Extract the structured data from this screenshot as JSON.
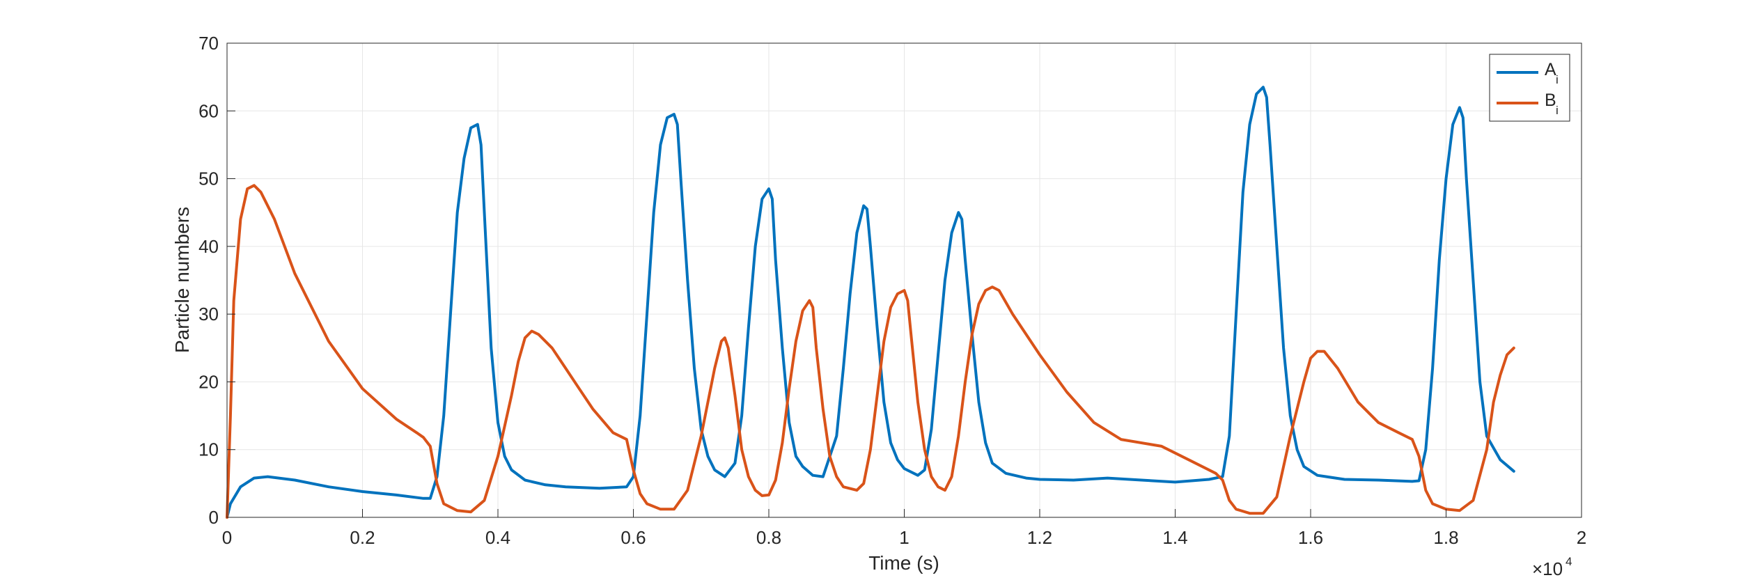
{
  "chart_data": {
    "type": "line",
    "xlabel": "Time (s)",
    "ylabel": "Particle numbers",
    "x_exponent_label": "×10",
    "x_exponent_power": "4",
    "xlim": [
      0,
      2
    ],
    "ylim": [
      0,
      70
    ],
    "x_ticks": [
      0,
      0.2,
      0.4,
      0.6,
      0.8,
      1,
      1.2,
      1.4,
      1.6,
      1.8,
      2
    ],
    "x_tick_labels": [
      "0",
      "0.2",
      "0.4",
      "0.6",
      "0.8",
      "1",
      "1.2",
      "1.4",
      "1.6",
      "1.8",
      "2"
    ],
    "y_ticks": [
      0,
      10,
      20,
      30,
      40,
      50,
      60,
      70
    ],
    "y_tick_labels": [
      "0",
      "10",
      "20",
      "30",
      "40",
      "50",
      "60",
      "70"
    ],
    "grid": true,
    "legend_position": "top-right",
    "series": [
      {
        "name": "A",
        "subscript": "i",
        "color": "#0072BD",
        "points": [
          [
            0,
            0
          ],
          [
            0.005,
            2
          ],
          [
            0.02,
            4.5
          ],
          [
            0.04,
            5.8
          ],
          [
            0.06,
            6
          ],
          [
            0.1,
            5.5
          ],
          [
            0.15,
            4.5
          ],
          [
            0.2,
            3.8
          ],
          [
            0.25,
            3.3
          ],
          [
            0.29,
            2.8
          ],
          [
            0.3,
            2.8
          ],
          [
            0.31,
            6
          ],
          [
            0.32,
            15
          ],
          [
            0.33,
            30
          ],
          [
            0.34,
            45
          ],
          [
            0.35,
            53
          ],
          [
            0.36,
            57.5
          ],
          [
            0.37,
            58
          ],
          [
            0.375,
            55
          ],
          [
            0.38,
            45
          ],
          [
            0.39,
            25
          ],
          [
            0.4,
            14
          ],
          [
            0.41,
            9
          ],
          [
            0.42,
            7
          ],
          [
            0.44,
            5.5
          ],
          [
            0.47,
            4.8
          ],
          [
            0.5,
            4.5
          ],
          [
            0.55,
            4.3
          ],
          [
            0.59,
            4.5
          ],
          [
            0.6,
            6
          ],
          [
            0.61,
            15
          ],
          [
            0.62,
            30
          ],
          [
            0.63,
            45
          ],
          [
            0.64,
            55
          ],
          [
            0.65,
            59
          ],
          [
            0.66,
            59.5
          ],
          [
            0.665,
            58
          ],
          [
            0.67,
            50
          ],
          [
            0.68,
            35
          ],
          [
            0.69,
            22
          ],
          [
            0.7,
            13
          ],
          [
            0.71,
            9
          ],
          [
            0.72,
            7
          ],
          [
            0.735,
            6
          ],
          [
            0.75,
            8
          ],
          [
            0.76,
            15
          ],
          [
            0.77,
            28
          ],
          [
            0.78,
            40
          ],
          [
            0.79,
            47
          ],
          [
            0.8,
            48.5
          ],
          [
            0.805,
            47
          ],
          [
            0.81,
            38
          ],
          [
            0.82,
            25
          ],
          [
            0.83,
            14
          ],
          [
            0.84,
            9
          ],
          [
            0.85,
            7.5
          ],
          [
            0.865,
            6.2
          ],
          [
            0.88,
            6
          ],
          [
            0.9,
            12
          ],
          [
            0.91,
            22
          ],
          [
            0.92,
            33
          ],
          [
            0.93,
            42
          ],
          [
            0.94,
            46
          ],
          [
            0.945,
            45.5
          ],
          [
            0.95,
            40
          ],
          [
            0.96,
            28
          ],
          [
            0.97,
            17
          ],
          [
            0.98,
            11
          ],
          [
            0.99,
            8.5
          ],
          [
            1.0,
            7.2
          ],
          [
            1.02,
            6.2
          ],
          [
            1.03,
            7
          ],
          [
            1.04,
            13
          ],
          [
            1.05,
            24
          ],
          [
            1.06,
            35
          ],
          [
            1.07,
            42
          ],
          [
            1.08,
            45
          ],
          [
            1.085,
            44
          ],
          [
            1.09,
            38
          ],
          [
            1.1,
            27
          ],
          [
            1.11,
            17
          ],
          [
            1.12,
            11
          ],
          [
            1.13,
            8
          ],
          [
            1.15,
            6.5
          ],
          [
            1.18,
            5.8
          ],
          [
            1.2,
            5.6
          ],
          [
            1.25,
            5.5
          ],
          [
            1.3,
            5.8
          ],
          [
            1.35,
            5.5
          ],
          [
            1.4,
            5.2
          ],
          [
            1.45,
            5.6
          ],
          [
            1.47,
            6
          ],
          [
            1.48,
            12
          ],
          [
            1.49,
            30
          ],
          [
            1.5,
            48
          ],
          [
            1.51,
            58
          ],
          [
            1.52,
            62.5
          ],
          [
            1.53,
            63.5
          ],
          [
            1.535,
            62
          ],
          [
            1.54,
            55
          ],
          [
            1.55,
            40
          ],
          [
            1.56,
            25
          ],
          [
            1.57,
            15
          ],
          [
            1.58,
            10
          ],
          [
            1.59,
            7.5
          ],
          [
            1.61,
            6.2
          ],
          [
            1.65,
            5.6
          ],
          [
            1.7,
            5.5
          ],
          [
            1.75,
            5.3
          ],
          [
            1.76,
            5.4
          ],
          [
            1.77,
            10
          ],
          [
            1.78,
            22
          ],
          [
            1.79,
            38
          ],
          [
            1.8,
            50
          ],
          [
            1.81,
            58
          ],
          [
            1.82,
            60.5
          ],
          [
            1.825,
            59
          ],
          [
            1.83,
            50
          ],
          [
            1.84,
            35
          ],
          [
            1.85,
            20
          ],
          [
            1.86,
            12
          ],
          [
            1.88,
            8.5
          ],
          [
            1.9,
            6.8
          ]
        ]
      },
      {
        "name": "B",
        "subscript": "i",
        "color": "#D95319",
        "points": [
          [
            0,
            0
          ],
          [
            0.005,
            15
          ],
          [
            0.01,
            32
          ],
          [
            0.02,
            44
          ],
          [
            0.03,
            48.5
          ],
          [
            0.04,
            49
          ],
          [
            0.05,
            48
          ],
          [
            0.07,
            44
          ],
          [
            0.1,
            36
          ],
          [
            0.15,
            26
          ],
          [
            0.2,
            19
          ],
          [
            0.25,
            14.5
          ],
          [
            0.28,
            12.5
          ],
          [
            0.29,
            11.8
          ],
          [
            0.3,
            10.5
          ],
          [
            0.31,
            5
          ],
          [
            0.32,
            2
          ],
          [
            0.34,
            1
          ],
          [
            0.36,
            0.8
          ],
          [
            0.38,
            2.5
          ],
          [
            0.4,
            9
          ],
          [
            0.42,
            18
          ],
          [
            0.43,
            23
          ],
          [
            0.44,
            26.5
          ],
          [
            0.45,
            27.5
          ],
          [
            0.46,
            27
          ],
          [
            0.48,
            25
          ],
          [
            0.5,
            22
          ],
          [
            0.52,
            19
          ],
          [
            0.54,
            16
          ],
          [
            0.57,
            12.5
          ],
          [
            0.59,
            11.5
          ],
          [
            0.6,
            7
          ],
          [
            0.61,
            3.5
          ],
          [
            0.62,
            2
          ],
          [
            0.64,
            1.2
          ],
          [
            0.66,
            1.2
          ],
          [
            0.68,
            4
          ],
          [
            0.7,
            12
          ],
          [
            0.72,
            22
          ],
          [
            0.73,
            26
          ],
          [
            0.735,
            26.5
          ],
          [
            0.74,
            25
          ],
          [
            0.75,
            18
          ],
          [
            0.76,
            10
          ],
          [
            0.77,
            6
          ],
          [
            0.78,
            4
          ],
          [
            0.79,
            3.2
          ],
          [
            0.8,
            3.3
          ],
          [
            0.81,
            5.5
          ],
          [
            0.82,
            11
          ],
          [
            0.83,
            19
          ],
          [
            0.84,
            26
          ],
          [
            0.85,
            30.5
          ],
          [
            0.86,
            32
          ],
          [
            0.865,
            31
          ],
          [
            0.87,
            25
          ],
          [
            0.88,
            16
          ],
          [
            0.89,
            9
          ],
          [
            0.9,
            6
          ],
          [
            0.91,
            4.5
          ],
          [
            0.93,
            4
          ],
          [
            0.94,
            5
          ],
          [
            0.95,
            10
          ],
          [
            0.96,
            18
          ],
          [
            0.97,
            26
          ],
          [
            0.98,
            31
          ],
          [
            0.99,
            33
          ],
          [
            1.0,
            33.5
          ],
          [
            1.005,
            32
          ],
          [
            1.01,
            27
          ],
          [
            1.02,
            17
          ],
          [
            1.03,
            10
          ],
          [
            1.04,
            6
          ],
          [
            1.05,
            4.5
          ],
          [
            1.06,
            4
          ],
          [
            1.07,
            6
          ],
          [
            1.08,
            12
          ],
          [
            1.09,
            20
          ],
          [
            1.1,
            27
          ],
          [
            1.11,
            31.5
          ],
          [
            1.12,
            33.5
          ],
          [
            1.13,
            34
          ],
          [
            1.14,
            33.5
          ],
          [
            1.16,
            30
          ],
          [
            1.2,
            24
          ],
          [
            1.24,
            18.5
          ],
          [
            1.28,
            14
          ],
          [
            1.32,
            11.5
          ],
          [
            1.38,
            10.5
          ],
          [
            1.42,
            8.5
          ],
          [
            1.46,
            6.5
          ],
          [
            1.47,
            5.5
          ],
          [
            1.48,
            2.5
          ],
          [
            1.49,
            1.2
          ],
          [
            1.51,
            0.6
          ],
          [
            1.53,
            0.6
          ],
          [
            1.55,
            3
          ],
          [
            1.57,
            12
          ],
          [
            1.59,
            20
          ],
          [
            1.6,
            23.5
          ],
          [
            1.61,
            24.5
          ],
          [
            1.62,
            24.5
          ],
          [
            1.64,
            22
          ],
          [
            1.67,
            17
          ],
          [
            1.7,
            14
          ],
          [
            1.73,
            12.5
          ],
          [
            1.75,
            11.5
          ],
          [
            1.76,
            9
          ],
          [
            1.77,
            4
          ],
          [
            1.78,
            2
          ],
          [
            1.8,
            1.2
          ],
          [
            1.82,
            1
          ],
          [
            1.84,
            2.5
          ],
          [
            1.86,
            10
          ],
          [
            1.87,
            17
          ],
          [
            1.88,
            21
          ],
          [
            1.89,
            24
          ],
          [
            1.9,
            25
          ]
        ]
      }
    ]
  }
}
